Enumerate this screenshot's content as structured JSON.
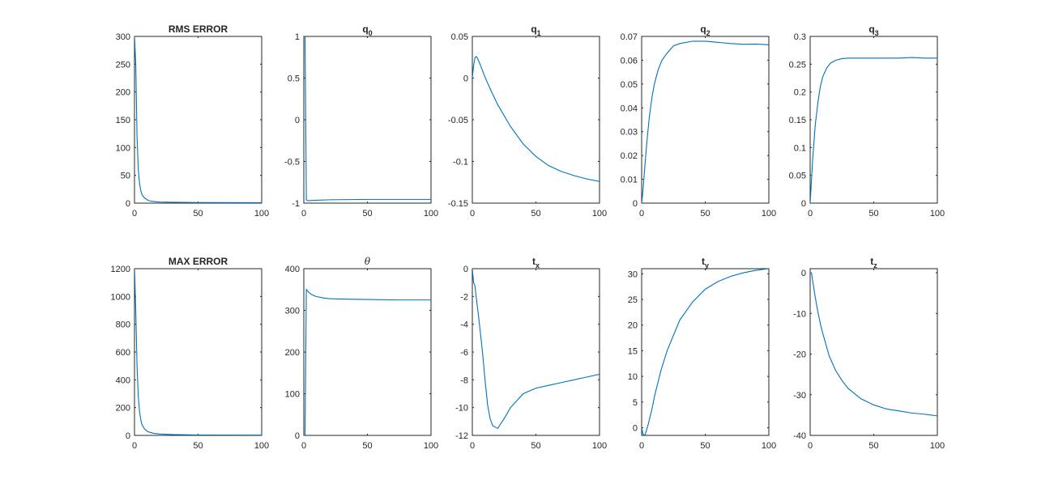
{
  "figure": {
    "line_color": "#0072BD",
    "axis_color": "#262626",
    "background": "#ffffff"
  },
  "chart_data": [
    {
      "type": "line",
      "title": "RMS ERROR",
      "xlim": [
        0,
        100
      ],
      "ylim": [
        0,
        300
      ],
      "xticks": [
        0,
        50,
        100
      ],
      "yticks": [
        0,
        50,
        100,
        150,
        200,
        250,
        300
      ],
      "series": [
        {
          "x": [
            0,
            1,
            2,
            3,
            4,
            5,
            6,
            8,
            10,
            12,
            15,
            20,
            30,
            50,
            100
          ],
          "y": [
            300,
            250,
            120,
            60,
            35,
            22,
            15,
            9,
            6,
            4,
            3,
            2,
            1.5,
            1,
            0.8
          ]
        }
      ]
    },
    {
      "type": "line",
      "title": "q",
      "title_sub": "0",
      "xlim": [
        0,
        100
      ],
      "ylim": [
        -1,
        1
      ],
      "xticks": [
        0,
        50,
        100
      ],
      "yticks": [
        -1,
        -0.5,
        0,
        0.5,
        1
      ],
      "series": [
        {
          "x": [
            0,
            1,
            2,
            3,
            5,
            10,
            20,
            50,
            100
          ],
          "y": [
            1,
            1,
            -0.96,
            -0.97,
            -0.97,
            -0.965,
            -0.96,
            -0.955,
            -0.955
          ]
        }
      ]
    },
    {
      "type": "line",
      "title": "q",
      "title_sub": "1",
      "xlim": [
        0,
        100
      ],
      "ylim": [
        -0.15,
        0.05
      ],
      "xticks": [
        0,
        50,
        100
      ],
      "yticks": [
        -0.15,
        -0.1,
        -0.05,
        0,
        0.05
      ],
      "series": [
        {
          "x": [
            0,
            1,
            2,
            3,
            4,
            6,
            8,
            10,
            15,
            20,
            30,
            40,
            50,
            60,
            70,
            80,
            90,
            100
          ],
          "y": [
            0,
            0.015,
            0.024,
            0.026,
            0.024,
            0.017,
            0.009,
            0.001,
            -0.016,
            -0.032,
            -0.058,
            -0.079,
            -0.094,
            -0.105,
            -0.112,
            -0.117,
            -0.121,
            -0.124
          ]
        }
      ]
    },
    {
      "type": "line",
      "title": "q",
      "title_sub": "2",
      "xlim": [
        0,
        100
      ],
      "ylim": [
        0,
        0.07
      ],
      "xticks": [
        0,
        50,
        100
      ],
      "yticks": [
        0,
        0.01,
        0.02,
        0.03,
        0.04,
        0.05,
        0.06,
        0.07
      ],
      "series": [
        {
          "x": [
            0,
            1,
            2,
            4,
            6,
            8,
            10,
            13,
            16,
            20,
            25,
            30,
            40,
            50,
            60,
            70,
            80,
            90,
            100
          ],
          "y": [
            0,
            0.005,
            0.012,
            0.025,
            0.036,
            0.044,
            0.05,
            0.056,
            0.06,
            0.063,
            0.066,
            0.067,
            0.068,
            0.068,
            0.0675,
            0.067,
            0.0667,
            0.0668,
            0.0665
          ]
        }
      ]
    },
    {
      "type": "line",
      "title": "q",
      "title_sub": "3",
      "xlim": [
        0,
        100
      ],
      "ylim": [
        0,
        0.3
      ],
      "xticks": [
        0,
        50,
        100
      ],
      "yticks": [
        0,
        0.05,
        0.1,
        0.15,
        0.2,
        0.25,
        0.3
      ],
      "series": [
        {
          "x": [
            0,
            1,
            2,
            4,
            6,
            8,
            10,
            13,
            16,
            20,
            25,
            30,
            40,
            50,
            60,
            70,
            80,
            90,
            100
          ],
          "y": [
            0,
            0.04,
            0.08,
            0.14,
            0.18,
            0.21,
            0.228,
            0.243,
            0.252,
            0.257,
            0.26,
            0.261,
            0.261,
            0.261,
            0.261,
            0.261,
            0.262,
            0.261,
            0.261
          ]
        }
      ]
    },
    {
      "type": "line",
      "title": "MAX ERROR",
      "xlim": [
        0,
        100
      ],
      "ylim": [
        0,
        1200
      ],
      "xticks": [
        0,
        50,
        100
      ],
      "yticks": [
        0,
        200,
        400,
        600,
        800,
        1000,
        1200
      ],
      "series": [
        {
          "x": [
            0,
            1,
            2,
            3,
            4,
            5,
            6,
            8,
            10,
            12,
            15,
            20,
            30,
            50,
            100
          ],
          "y": [
            1200,
            900,
            500,
            280,
            170,
            110,
            75,
            45,
            30,
            22,
            15,
            10,
            6,
            3,
            2
          ]
        }
      ]
    },
    {
      "type": "line",
      "title": "θ",
      "xlim": [
        0,
        100
      ],
      "ylim": [
        0,
        400
      ],
      "xticks": [
        0,
        50,
        100
      ],
      "yticks": [
        0,
        100,
        200,
        300,
        400
      ],
      "series": [
        {
          "x": [
            0,
            1,
            2,
            4,
            6,
            10,
            15,
            20,
            30,
            50,
            75,
            100
          ],
          "y": [
            0,
            0,
            350,
            343,
            338,
            333,
            330,
            328,
            327,
            326,
            325,
            325
          ]
        }
      ]
    },
    {
      "type": "line",
      "title": "t",
      "title_sub": "x",
      "xlim": [
        0,
        100
      ],
      "ylim": [
        -12,
        0
      ],
      "xticks": [
        0,
        50,
        100
      ],
      "yticks": [
        -12,
        -10,
        -8,
        -6,
        -4,
        -2,
        0
      ],
      "series": [
        {
          "x": [
            0,
            1,
            2,
            3,
            5,
            8,
            10,
            12,
            14,
            16,
            18,
            20,
            22,
            25,
            30,
            40,
            50,
            60,
            70,
            80,
            90,
            100
          ],
          "y": [
            0,
            -1,
            -1.2,
            -2,
            -3.5,
            -6,
            -8,
            -9.8,
            -10.8,
            -11.3,
            -11.4,
            -11.5,
            -11.2,
            -10.8,
            -10,
            -9,
            -8.6,
            -8.4,
            -8.2,
            -8,
            -7.8,
            -7.6
          ]
        }
      ]
    },
    {
      "type": "line",
      "title": "t",
      "title_sub": "y",
      "xlim": [
        0,
        100
      ],
      "ylim": [
        -1.5,
        31
      ],
      "xticks": [
        0,
        50,
        100
      ],
      "yticks": [
        0,
        5,
        10,
        15,
        20,
        25,
        30
      ],
      "series": [
        {
          "x": [
            0,
            1,
            2,
            3,
            5,
            8,
            10,
            15,
            20,
            30,
            40,
            50,
            60,
            70,
            80,
            90,
            100
          ],
          "y": [
            0,
            -1.2,
            -1.5,
            -1.2,
            0.5,
            3.5,
            6,
            11,
            15,
            21,
            24.5,
            27,
            28.5,
            29.5,
            30.2,
            30.7,
            31
          ]
        }
      ]
    },
    {
      "type": "line",
      "title": "t",
      "title_sub": "z",
      "xlim": [
        0,
        100
      ],
      "ylim": [
        -40,
        1
      ],
      "xticks": [
        0,
        50,
        100
      ],
      "yticks": [
        -40,
        -30,
        -20,
        -10,
        0
      ],
      "series": [
        {
          "x": [
            0,
            1,
            2,
            4,
            6,
            8,
            10,
            15,
            20,
            25,
            30,
            40,
            50,
            60,
            70,
            80,
            90,
            100
          ],
          "y": [
            0,
            0,
            -2,
            -6,
            -9.5,
            -12.5,
            -15,
            -20.5,
            -24,
            -26.5,
            -28.5,
            -31,
            -32.5,
            -33.5,
            -34,
            -34.5,
            -34.8,
            -35.2
          ]
        }
      ]
    }
  ]
}
